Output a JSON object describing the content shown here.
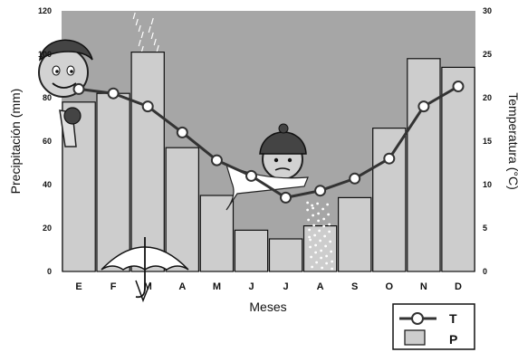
{
  "chart_data": {
    "type": "bar",
    "title": "",
    "xlabel": "Meses",
    "ylabel": "Precipitación (mm)",
    "y2label": "Temperatura (°C)",
    "categories": [
      "E",
      "F",
      "M",
      "A",
      "M",
      "J",
      "J",
      "A",
      "S",
      "O",
      "N",
      "D"
    ],
    "ylim": [
      0,
      120
    ],
    "y2lim": [
      0,
      30
    ],
    "yticks": [
      "0",
      "20",
      "40",
      "60",
      "80",
      "100",
      "120"
    ],
    "y2ticks": [
      "0",
      "5",
      "10",
      "15",
      "20",
      "25",
      "30"
    ],
    "grid": false,
    "legend_position": "bottom-right",
    "series": [
      {
        "name": "P",
        "type": "bar",
        "axis": "left",
        "values": [
          78,
          82,
          101,
          57,
          35,
          19,
          15,
          21,
          34,
          66,
          98,
          94
        ]
      },
      {
        "name": "T",
        "type": "line",
        "axis": "right",
        "values": [
          21,
          20.5,
          19,
          16,
          12.8,
          11,
          8.5,
          9.3,
          10.7,
          13,
          19,
          21.3
        ]
      }
    ],
    "colors": {
      "plot_background": "#a6a6a6",
      "bar_fill": "#cdcdcd",
      "line": "#333333",
      "marker_fill": "#ffffff"
    },
    "decorations": [
      "face-icon",
      "raindrops-icon",
      "umbrella-icon",
      "cold-face-icon",
      "snowflakes-icon"
    ]
  }
}
